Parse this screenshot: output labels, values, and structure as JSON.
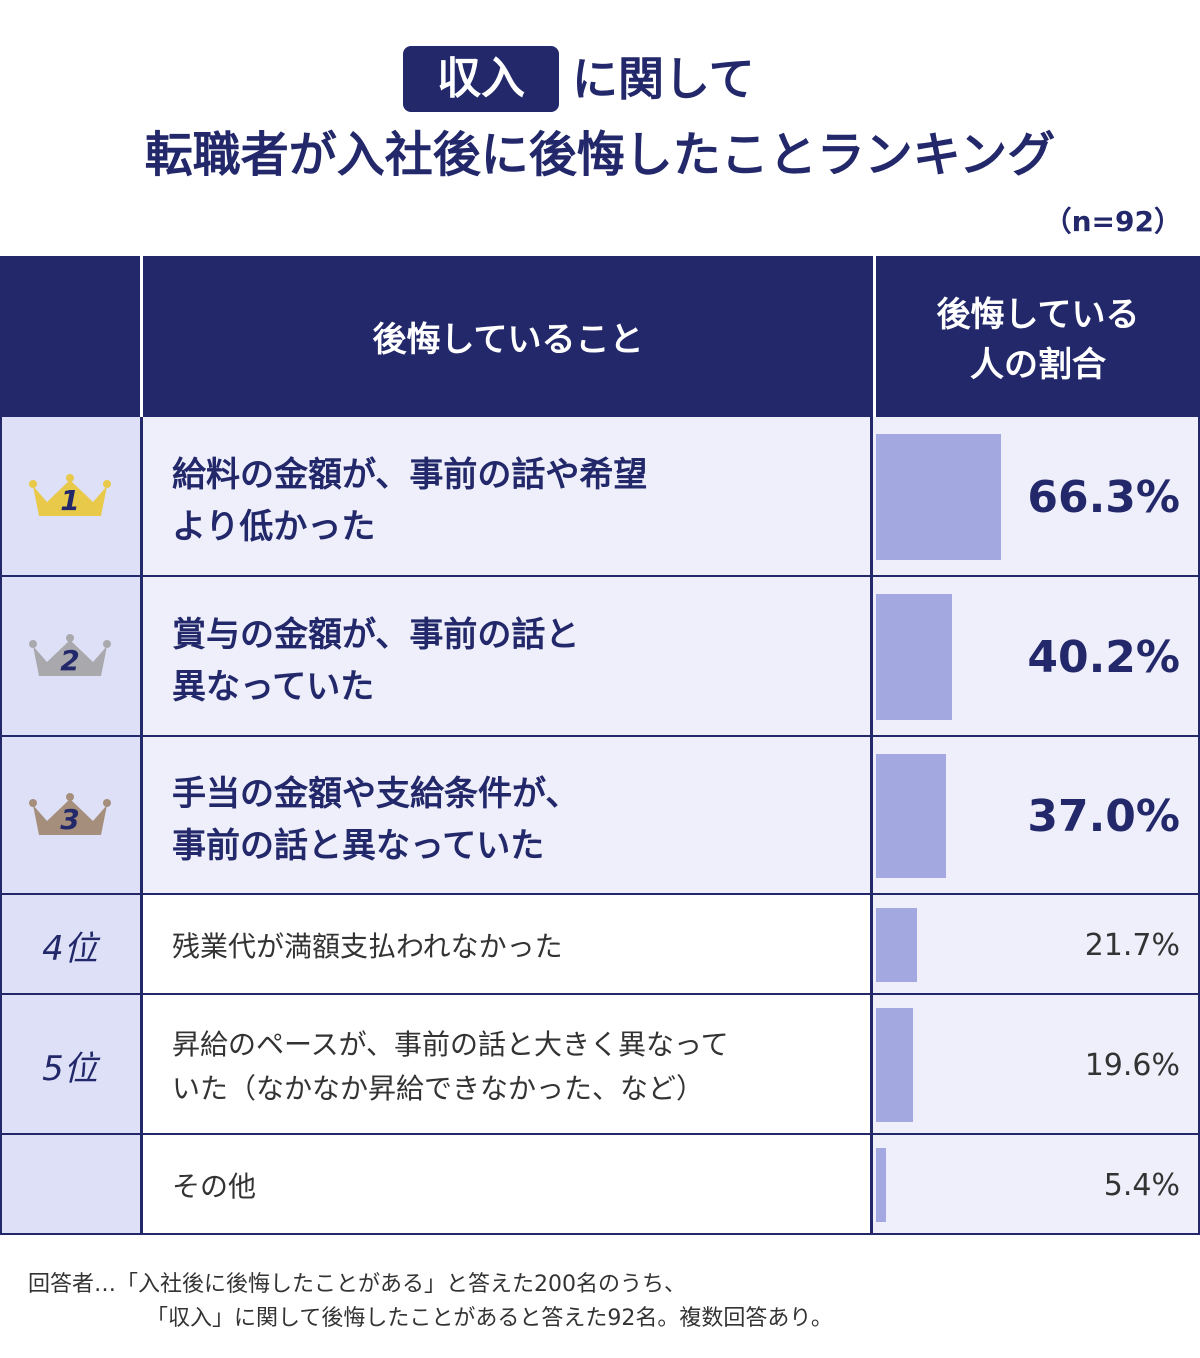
{
  "title": {
    "highlight": "収入",
    "rest": "に関して",
    "line2": "転職者が入社後に後悔したことランキング",
    "n": "（n=92）"
  },
  "table": {
    "headers": {
      "item": "後悔していること",
      "rate": [
        "後悔している",
        "人の割合"
      ]
    },
    "rows": [
      {
        "rank": "1",
        "crown": "#e8c94a",
        "lines": [
          "給料の金額が、事前の話や希望",
          "より低かった"
        ],
        "value": 66.3,
        "value_label": "66.3%"
      },
      {
        "rank": "2",
        "crown": "#a9a9ad",
        "lines": [
          "賞与の金額が、事前の話と",
          "異なっていた"
        ],
        "value": 40.2,
        "value_label": "40.2%"
      },
      {
        "rank": "3",
        "crown": "#a58f7c",
        "lines": [
          "手当の金額や支給条件が、",
          "事前の話と異なっていた"
        ],
        "value": 37.0,
        "value_label": "37.0%"
      },
      {
        "rank": "4位",
        "crown": null,
        "lines": [
          "残業代が満額支払われなかった"
        ],
        "value": 21.7,
        "value_label": "21.7%"
      },
      {
        "rank": "5位",
        "crown": null,
        "lines": [
          "昇給のペースが、事前の話と大きく異なって",
          "いた（なかなか昇給できなかった、など）"
        ],
        "value": 19.6,
        "value_label": "19.6%"
      },
      {
        "rank": null,
        "crown": null,
        "lines": [
          "その他"
        ],
        "value": 5.4,
        "value_label": "5.4%"
      }
    ],
    "bar_color": "#a4a8e0"
  },
  "footer": [
    "回答者…「入社後に後悔したことがある」と答えた200名のうち、",
    "「収入」に関して後悔したことがあると答えた92名。複数回答あり。"
  ]
}
